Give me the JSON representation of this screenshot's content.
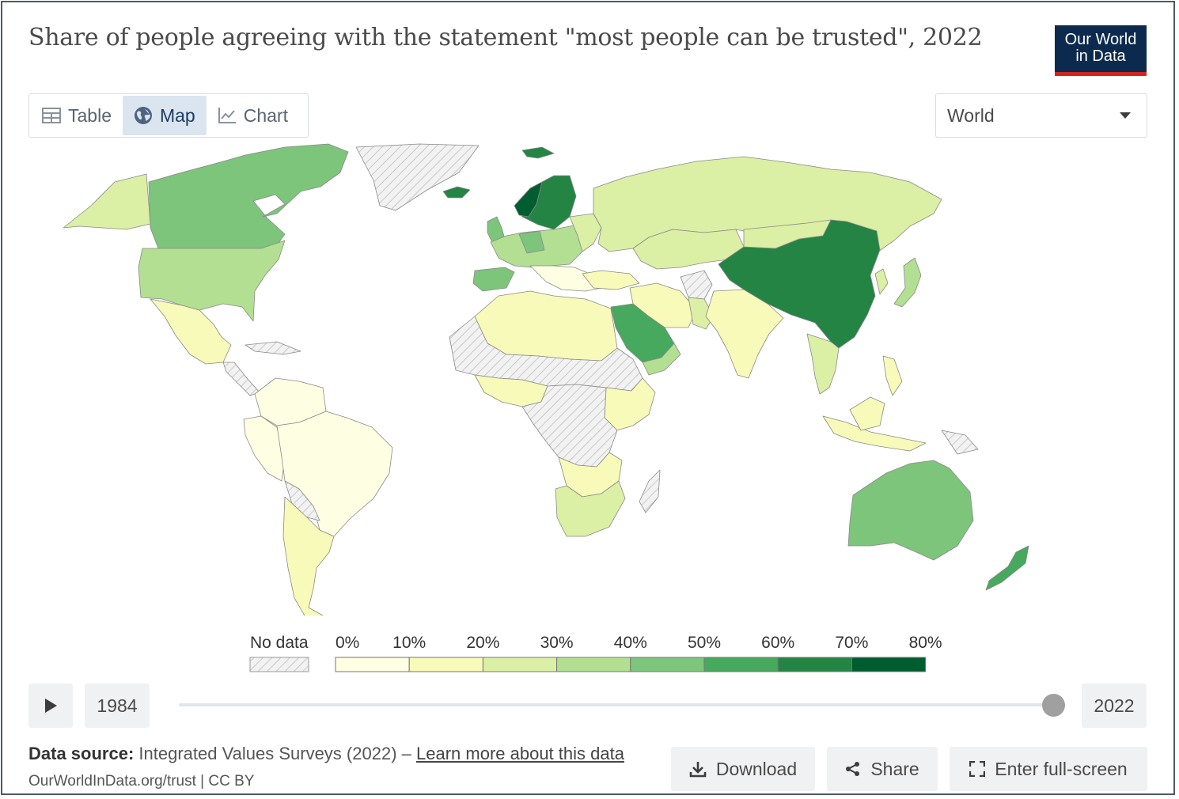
{
  "title": "Share of people agreeing with the statement \"most people can be trusted\", 2022",
  "logo": {
    "line1": "Our World",
    "line2": "in Data"
  },
  "tabs": [
    {
      "label": "Table",
      "icon": "table-icon",
      "active": false
    },
    {
      "label": "Map",
      "icon": "globe-icon",
      "active": true
    },
    {
      "label": "Chart",
      "icon": "line-chart-icon",
      "active": false
    }
  ],
  "region_select": {
    "value": "World"
  },
  "legend": {
    "no_data_label": "No data",
    "bins": [
      "0%",
      "10%",
      "20%",
      "30%",
      "40%",
      "50%",
      "60%",
      "70%",
      "80%"
    ],
    "colors": [
      "#fefee3",
      "#f7fab8",
      "#dbefa5",
      "#b2df91",
      "#7cc57b",
      "#46a95d",
      "#238444",
      "#005d2f"
    ],
    "no_data_color": "#e5e5e5"
  },
  "timeline": {
    "start_year": "1984",
    "end_year": "2022",
    "selected_fraction": 1.0
  },
  "footer": {
    "source_label": "Data source:",
    "source_text": "Integrated Values Surveys (2022) –",
    "learn_more": "Learn more about this data",
    "citation": "OurWorldInData.org/trust | CC BY"
  },
  "buttons": {
    "download": "Download",
    "share": "Share",
    "fullscreen": "Enter full-screen"
  }
}
